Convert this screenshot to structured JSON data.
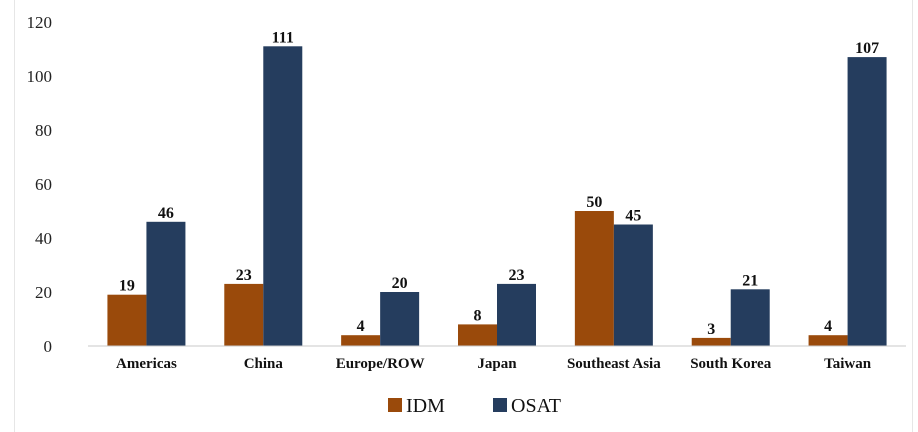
{
  "chart_data": {
    "type": "bar",
    "categories": [
      "Americas",
      "China",
      "Europe/ROW",
      "Japan",
      "Southeast Asia",
      "South Korea",
      "Taiwan"
    ],
    "series": [
      {
        "name": "IDM",
        "values": [
          19,
          23,
          4,
          8,
          50,
          3,
          4
        ],
        "color": "#9a4a0b"
      },
      {
        "name": "OSAT",
        "values": [
          46,
          111,
          20,
          23,
          45,
          21,
          107
        ],
        "color": "#253d5e"
      }
    ],
    "ylim": [
      0,
      120
    ],
    "yticks": [
      0,
      20,
      40,
      60,
      80,
      100,
      120
    ],
    "grid": false,
    "legend_position": "bottom-center",
    "data_labels": true
  }
}
